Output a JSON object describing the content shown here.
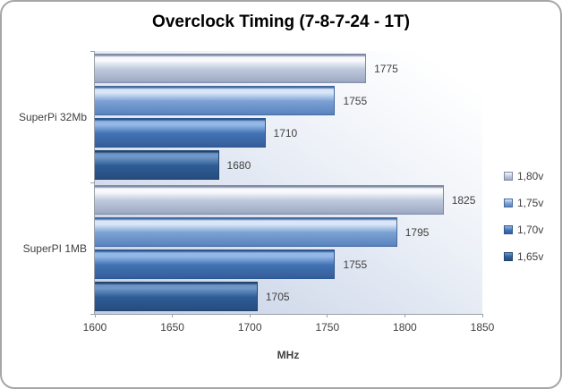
{
  "chart_data": {
    "type": "bar",
    "orientation": "horizontal",
    "title": "Overclock Timing (7-8-7-24 - 1T)",
    "xlabel": "MHz",
    "xlim": [
      1600,
      1850
    ],
    "xticks": [
      1600,
      1650,
      1700,
      1750,
      1800,
      1850
    ],
    "grid": false,
    "legend_position": "right",
    "value_labels": true,
    "categories": [
      "SuperPi 32Mb",
      "SuperPI 1MB"
    ],
    "series": [
      {
        "name": "1,80v",
        "values": [
          1775,
          1825
        ],
        "colors": {
          "edge": "#7d89a3",
          "hi": "#f7f9fc",
          "mid": "#bfc9dc",
          "lo": "#9fabc5"
        }
      },
      {
        "name": "1,75v",
        "values": [
          1755,
          1795
        ],
        "colors": {
          "edge": "#44699f",
          "hi": "#d9e6f7",
          "mid": "#7ba1d4",
          "lo": "#5d85bf"
        }
      },
      {
        "name": "1,70v",
        "values": [
          1710,
          1755
        ],
        "colors": {
          "edge": "#2c568e",
          "hi": "#93b7e6",
          "mid": "#4273b4",
          "lo": "#365f9b"
        }
      },
      {
        "name": "1,65v",
        "values": [
          1680,
          1705
        ],
        "colors": {
          "edge": "#1f4470",
          "hi": "#6e96c6",
          "mid": "#2e5d97",
          "lo": "#264e7f"
        }
      }
    ],
    "plot_bg_from": "#c3cee5",
    "plot_bg_to": "#ffffff",
    "axis_color": "#9aa0a8",
    "text_color": "#3f3f3f"
  }
}
